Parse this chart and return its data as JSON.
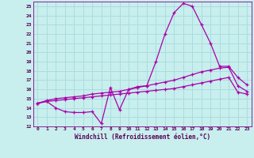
{
  "title": "",
  "xlabel": "Windchill (Refroidissement éolien,°C)",
  "background_color": "#c8eeee",
  "grid_color": "#aadddd",
  "line_color": "#aa00aa",
  "xlim": [
    -0.5,
    23.5
  ],
  "ylim": [
    12,
    25.5
  ],
  "xticks": [
    0,
    1,
    2,
    3,
    4,
    5,
    6,
    7,
    8,
    9,
    10,
    11,
    12,
    13,
    14,
    15,
    16,
    17,
    18,
    19,
    20,
    21,
    22,
    23
  ],
  "yticks": [
    12,
    13,
    14,
    15,
    16,
    17,
    18,
    19,
    20,
    21,
    22,
    23,
    24,
    25
  ],
  "series1_x": [
    0,
    1,
    2,
    3,
    4,
    5,
    6,
    7,
    8,
    9,
    10,
    11,
    12,
    13,
    14,
    15,
    16,
    17,
    18,
    19,
    20,
    21,
    22,
    23
  ],
  "series1_y": [
    14.5,
    14.7,
    14.0,
    13.6,
    13.5,
    13.5,
    13.6,
    12.3,
    16.2,
    13.8,
    16.0,
    16.3,
    16.4,
    19.0,
    22.0,
    24.3,
    25.3,
    25.0,
    23.0,
    21.0,
    18.5,
    18.5,
    17.3,
    16.5
  ],
  "series2_x": [
    0,
    1,
    2,
    3,
    4,
    5,
    6,
    7,
    8,
    9,
    10,
    11,
    12,
    13,
    14,
    15,
    16,
    17,
    18,
    19,
    20,
    21,
    22,
    23
  ],
  "series2_y": [
    14.5,
    14.8,
    15.0,
    15.1,
    15.2,
    15.3,
    15.5,
    15.6,
    15.7,
    15.8,
    16.0,
    16.2,
    16.4,
    16.6,
    16.8,
    17.0,
    17.3,
    17.6,
    17.9,
    18.1,
    18.3,
    18.4,
    16.4,
    15.8
  ],
  "series3_x": [
    0,
    1,
    2,
    3,
    4,
    5,
    6,
    7,
    8,
    9,
    10,
    11,
    12,
    13,
    14,
    15,
    16,
    17,
    18,
    19,
    20,
    21,
    22,
    23
  ],
  "series3_y": [
    14.5,
    14.7,
    14.8,
    14.9,
    15.0,
    15.1,
    15.2,
    15.3,
    15.4,
    15.5,
    15.6,
    15.7,
    15.8,
    15.9,
    16.0,
    16.1,
    16.3,
    16.5,
    16.7,
    16.9,
    17.1,
    17.3,
    15.7,
    15.5
  ]
}
